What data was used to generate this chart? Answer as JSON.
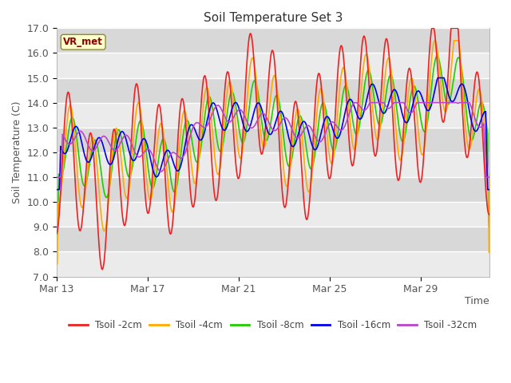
{
  "title": "Soil Temperature Set 3",
  "xlabel": "Time",
  "ylabel": "Soil Temperature (C)",
  "ylim": [
    7.0,
    17.0
  ],
  "yticks": [
    7.0,
    8.0,
    9.0,
    10.0,
    11.0,
    12.0,
    13.0,
    14.0,
    15.0,
    16.0,
    17.0
  ],
  "xtick_labels": [
    "Mar 13",
    "Mar 17",
    "Mar 21",
    "Mar 25",
    "Mar 29"
  ],
  "background_color": "#ffffff",
  "plot_bg_color": "#e8e8e8",
  "band_light_color": "#ebebeb",
  "band_dark_color": "#d8d8d8",
  "grid_color": "#ffffff",
  "legend_label": "VR_met",
  "series_colors": {
    "Tsoil -2cm": "#ee2222",
    "Tsoil -4cm": "#ffaa00",
    "Tsoil -8cm": "#22cc00",
    "Tsoil -16cm": "#0000ee",
    "Tsoil -32cm": "#bb44cc"
  },
  "n_days": 19,
  "base_temp": 12.0,
  "trend_per_day": 0.12
}
